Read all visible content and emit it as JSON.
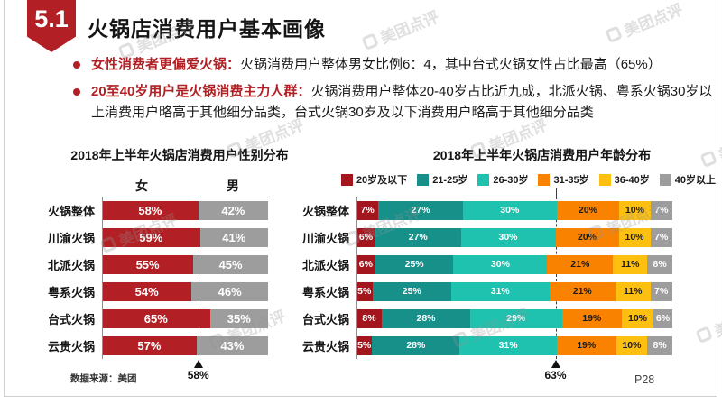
{
  "slide": {
    "badge": "5.1",
    "title": "火锅店消费用户基本画像",
    "source": "数据来源：美团",
    "page_number": "P28",
    "watermark_text": "美团点评"
  },
  "bullets": [
    {
      "lead": "女性消费者更偏爱火锅：",
      "text": "火锅消费用户整体男女比例6：4，其中台式火锅女性占比最高（65%）"
    },
    {
      "lead": "20至40岁用户是火锅消费主力人群：",
      "text": "火锅消费用户整体20-40岁占比近九成，北派火锅、粤系火锅30岁以上消费用户略高于其他细分品类，台式火锅30岁及以下消费用户略高于其他细分品类"
    }
  ],
  "chart_data": [
    {
      "type": "bar",
      "variant": "horizontal-stacked",
      "title": "2018年上半年火锅店消费用户性别分布",
      "unit": "%",
      "xlim": [
        0,
        100
      ],
      "grid": false,
      "categories": [
        "火锅整体",
        "川渝火锅",
        "北派火锅",
        "粤系火锅",
        "台式火锅",
        "云贵火锅"
      ],
      "series": [
        {
          "name": "女",
          "color": "#b22025",
          "text_color": "#ffffff",
          "values": [
            58,
            59,
            55,
            54,
            65,
            57
          ]
        },
        {
          "name": "男",
          "color": "#9d9d9d",
          "text_color": "#ffffff",
          "values": [
            42,
            41,
            45,
            46,
            35,
            43
          ]
        }
      ],
      "average_marker": {
        "value": 58,
        "label": "58%"
      }
    },
    {
      "type": "bar",
      "variant": "horizontal-stacked",
      "title": "2018年上半年火锅店消费用户年龄分布",
      "unit": "%",
      "xlim": [
        0,
        100
      ],
      "grid": false,
      "legend_position": "top",
      "categories": [
        "火锅整体",
        "川渝火锅",
        "北派火锅",
        "粤系火锅",
        "台式火锅",
        "云贵火锅"
      ],
      "series": [
        {
          "name": "20岁及以下",
          "color": "#a4161d",
          "text_color": "#ffffff",
          "values": [
            7,
            6,
            6,
            5,
            8,
            5
          ]
        },
        {
          "name": "21-25岁",
          "color": "#17908a",
          "text_color": "#ffffff",
          "values": [
            27,
            27,
            25,
            25,
            28,
            28
          ]
        },
        {
          "name": "26-30岁",
          "color": "#1fc2ae",
          "text_color": "#ffffff",
          "values": [
            30,
            30,
            30,
            31,
            29,
            31
          ]
        },
        {
          "name": "31-35岁",
          "color": "#f98200",
          "text_color": "#1a1a1a",
          "values": [
            20,
            20,
            21,
            21,
            19,
            19
          ]
        },
        {
          "name": "36-40岁",
          "color": "#fdc011",
          "text_color": "#1a1a1a",
          "values": [
            10,
            10,
            11,
            11,
            10,
            10
          ]
        },
        {
          "name": "40岁以上",
          "color": "#9d9d9d",
          "text_color": "#ffffff",
          "values": [
            7,
            7,
            8,
            7,
            6,
            8
          ]
        }
      ],
      "average_marker": {
        "value": 63,
        "label": "63%"
      }
    }
  ]
}
